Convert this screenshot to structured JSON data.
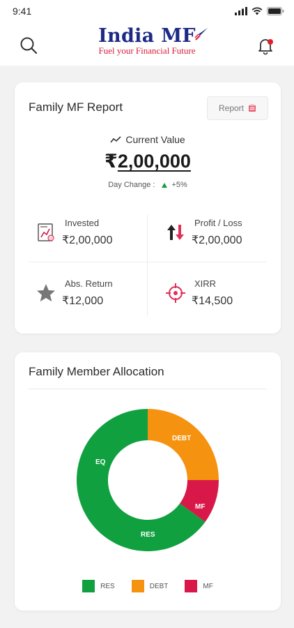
{
  "status_bar": {
    "time": "9:41"
  },
  "header": {
    "logo_title": "India MF",
    "logo_tagline": "Fuel your Financial Future"
  },
  "report_card": {
    "title": "Family MF Report",
    "report_button_label": "Report",
    "current_value_label": "Current Value",
    "currency_symbol": "₹",
    "current_value": "2,00,000",
    "day_change_label": "Day Change :",
    "day_change_value": "+5%",
    "stats": [
      {
        "label": "Invested",
        "value": "₹2,00,000"
      },
      {
        "label": "Profit / Loss",
        "value": "₹2,00,000"
      },
      {
        "label": "Abs. Return",
        "value": "₹12,000"
      },
      {
        "label": "XIRR",
        "value": "₹14,500"
      }
    ]
  },
  "allocation_card": {
    "title": "Family Member Allocation",
    "slice_labels": {
      "eq": "EQ",
      "debt": "DEBT",
      "mf": "MF",
      "res": "RES"
    },
    "legend": [
      {
        "label": "RES",
        "color": "#10a040"
      },
      {
        "label": "DEBT",
        "color": "#f5920f"
      },
      {
        "label": "MF",
        "color": "#d81848"
      }
    ]
  },
  "chart_data": {
    "type": "pie",
    "categories": [
      "DEBT",
      "MF",
      "RES / EQ"
    ],
    "values": [
      25,
      10,
      65
    ],
    "colors": [
      "#f5920f",
      "#d81848",
      "#10a040"
    ],
    "donut": true,
    "title": "Family Member Allocation"
  },
  "colors": {
    "accent_red": "#d81b3a",
    "brand_blue": "#1e2a86",
    "positive": "#1a9a3c"
  }
}
